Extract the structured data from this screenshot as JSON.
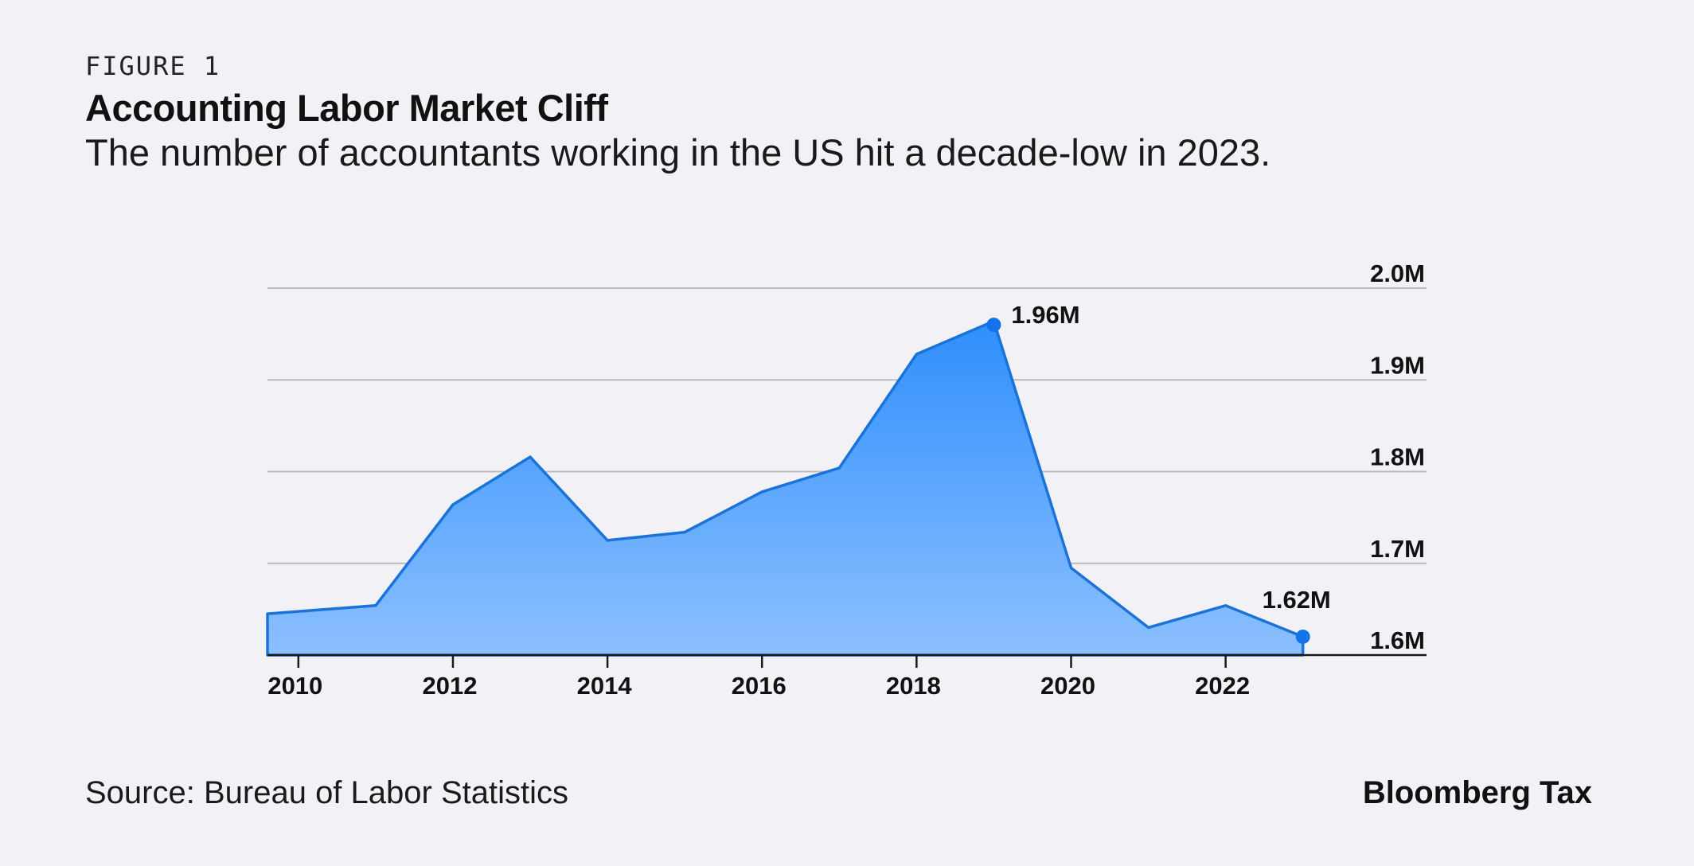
{
  "header": {
    "kicker": "FIGURE 1",
    "title": "Accounting Labor Market Cliff",
    "subtitle": "The number of accountants working in the US hit a decade-low in 2023."
  },
  "footer": {
    "source": "Source: Bureau of Labor Statistics",
    "brand": "Bloomberg Tax"
  },
  "colors": {
    "line": "#1a73d9",
    "fill_top": "#2f8ffc",
    "fill_bottom": "#8cc0ff",
    "marker": "#1273eb",
    "grid": "#b9b9c0",
    "axis": "#1a1a1a"
  },
  "chart_data": {
    "type": "area",
    "title": "Accounting Labor Market Cliff",
    "subtitle": "The number of accountants working in the US hit a decade-low in 2023.",
    "x": [
      2009.6,
      2011,
      2012,
      2013,
      2014,
      2015,
      2016,
      2017,
      2018,
      2019,
      2020,
      2021,
      2022,
      2023
    ],
    "values": [
      1.645,
      1.654,
      1.764,
      1.816,
      1.725,
      1.734,
      1.778,
      1.804,
      1.928,
      1.964,
      1.695,
      1.63,
      1.654,
      1.62
    ],
    "xlim": [
      2009.6,
      2024.6
    ],
    "ylim": [
      1.6,
      2.0
    ],
    "x_ticks": [
      2010,
      2012,
      2014,
      2016,
      2018,
      2020,
      2022
    ],
    "x_tick_labels": [
      "2010",
      "2012",
      "2014",
      "2016",
      "2018",
      "2020",
      "2022"
    ],
    "y_ticks": [
      1.6,
      1.7,
      1.8,
      1.9,
      2.0
    ],
    "y_tick_labels": [
      "1.6M",
      "1.7M",
      "1.8M",
      "1.9M",
      "2.0M"
    ],
    "y_axis_position": "right",
    "grid": true,
    "legend": "none",
    "annotations": [
      {
        "x": 2019,
        "y": 1.96,
        "text": "1.96M",
        "marker": true,
        "position": "right"
      },
      {
        "x": 2023,
        "y": 1.62,
        "text": "1.62M",
        "marker": true,
        "position": "above"
      }
    ]
  }
}
